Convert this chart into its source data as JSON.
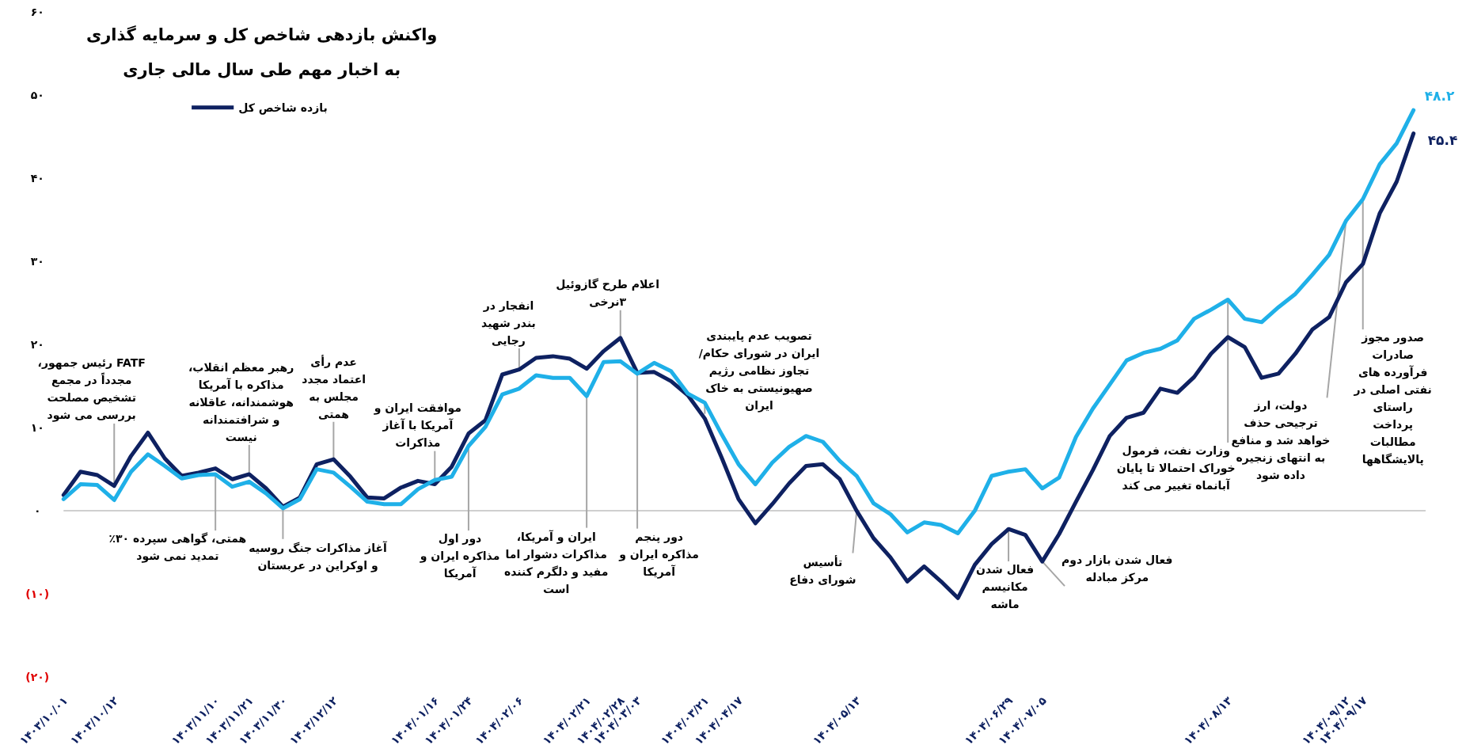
{
  "chart_data": {
    "type": "line",
    "title": "واکنش بازدهی شاخص کل و سرمایه گذاری\nبه اخبار مهم طی سال مالی جاری",
    "legend": "top left",
    "categories": [
      "۱۴۰۳/۱۰/۰۱",
      null,
      null,
      "۱۴۰۳/۱۰/۱۲",
      null,
      null,
      null,
      null,
      null,
      "۱۴۰۳/۱۱/۱۰",
      null,
      "۱۴۰۳/۱۱/۲۱",
      null,
      "۱۴۰۳/۱۱/۳۰",
      null,
      null,
      "۱۴۰۳/۱۲/۱۲",
      null,
      null,
      null,
      null,
      null,
      "۱۴۰۴/۰۱/۱۶",
      null,
      "۱۴۰۴/۰۱/۲۴",
      null,
      null,
      "۱۴۰۴/۰۲/۰۶",
      null,
      null,
      null,
      "۱۴۰۴/۰۲/۲۱",
      null,
      "۱۴۰۴/۰۲/۲۸",
      "۱۴۰۴/۰۳/۰۳",
      null,
      null,
      null,
      "۱۴۰۴/۰۳/۲۱",
      null,
      "۱۴۰۴/۰۴/۱۷",
      null,
      null,
      null,
      null,
      null,
      null,
      "۱۴۰۴/۰۵/۱۳",
      null,
      null,
      null,
      null,
      null,
      null,
      null,
      null,
      "۱۴۰۴/۰۶/۲۹",
      null,
      "۱۴۰۴/۰۷/۰۵",
      null,
      null,
      null,
      null,
      null,
      null,
      null,
      null,
      null,
      null,
      "۱۴۰۴/۰۸/۱۳",
      null,
      null,
      null,
      null,
      null,
      null,
      "۱۴۰۴/۰۹/۱۲",
      "۱۴۰۴/۰۹/۱۷",
      null,
      null,
      null
    ],
    "ylim": [
      -20,
      60
    ],
    "yticks": [
      {
        "value": 60,
        "label": "۶۰"
      },
      {
        "value": 50,
        "label": "۵۰"
      },
      {
        "value": 40,
        "label": "۴۰"
      },
      {
        "value": 30,
        "label": "۳۰"
      },
      {
        "value": 20,
        "label": "۲۰"
      },
      {
        "value": 10,
        "label": "۱۰"
      },
      {
        "value": 0,
        "label": "۰"
      },
      {
        "value": -10,
        "label": "(۱۰)"
      },
      {
        "value": -20,
        "label": "(۲۰)"
      }
    ],
    "ref_lines": [
      {
        "axis": "y",
        "value": 0,
        "color": "#bfbfbf"
      }
    ],
    "series": [
      {
        "name": "بازده شاخص کل",
        "color": "#0e2161",
        "values": [
          1.9,
          4.7,
          4.3,
          3.0,
          6.6,
          9.4,
          6.3,
          4.2,
          4.6,
          5.1,
          3.8,
          4.4,
          2.7,
          0.5,
          1.6,
          5.6,
          6.2,
          4.1,
          1.6,
          1.5,
          2.8,
          3.6,
          3.2,
          5.3,
          9.3,
          10.9,
          16.4,
          17.0,
          18.4,
          18.6,
          18.3,
          17.1,
          19.2,
          20.8,
          16.6,
          16.7,
          15.6,
          13.9,
          11.1,
          6.4,
          1.4,
          -1.5,
          0.8,
          3.3,
          5.4,
          5.6,
          3.8,
          0.0,
          -3.3,
          -5.6,
          -8.5,
          -6.7,
          -8.5,
          -10.5,
          -6.5,
          -4.0,
          -2.2,
          -2.9,
          -6.1,
          -2.8,
          1.1,
          4.9,
          9.0,
          11.2,
          11.8,
          14.7,
          14.2,
          16.1,
          18.9,
          20.9,
          19.7,
          16.0,
          16.5,
          18.9,
          21.8,
          23.3,
          27.5,
          29.7,
          35.8,
          39.6,
          45.4
        ],
        "value_labels": [
          null,
          null,
          null,
          null,
          null,
          null,
          null,
          null,
          null,
          null,
          null,
          null,
          null,
          null,
          null,
          null,
          null,
          null,
          null,
          null,
          null,
          null,
          null,
          null,
          null,
          null,
          null,
          null,
          null,
          null,
          null,
          null,
          null,
          null,
          null,
          null,
          null,
          null,
          null,
          null,
          null,
          null,
          null,
          null,
          null,
          null,
          null,
          null,
          null,
          null,
          null,
          null,
          null,
          null,
          null,
          null,
          null,
          null,
          null,
          null,
          null,
          null,
          null,
          null,
          null,
          null,
          null,
          null,
          null,
          null,
          null,
          null,
          null,
          null,
          null,
          null,
          null,
          null,
          null,
          null,
          "۴۵.۴"
        ]
      },
      {
        "color": "#1fb0e8",
        "values": [
          1.4,
          3.2,
          3.1,
          1.3,
          4.7,
          6.8,
          5.4,
          3.9,
          4.3,
          4.4,
          2.9,
          3.5,
          2.1,
          0.3,
          1.4,
          5.0,
          4.6,
          2.9,
          1.1,
          0.8,
          0.8,
          2.6,
          3.7,
          4.1,
          7.8,
          10.1,
          14.0,
          14.7,
          16.3,
          16.0,
          16.0,
          13.8,
          17.9,
          18.0,
          16.5,
          17.8,
          16.8,
          14.1,
          13.0,
          9.2,
          5.6,
          3.2,
          5.8,
          7.7,
          9.0,
          8.3,
          6.0,
          4.2,
          0.9,
          -0.4,
          -2.6,
          -1.4,
          -1.7,
          -2.7,
          0.0,
          4.2,
          4.7,
          5.0,
          2.7,
          4.0,
          8.9,
          12.3,
          15.2,
          18.1,
          19.0,
          19.5,
          20.5,
          23.1,
          24.2,
          25.4,
          23.1,
          22.7,
          24.5,
          26.1,
          28.4,
          30.8,
          34.9,
          37.5,
          41.7,
          44.2,
          48.2
        ],
        "value_labels": [
          null,
          null,
          null,
          null,
          null,
          null,
          null,
          null,
          null,
          null,
          null,
          null,
          null,
          null,
          null,
          null,
          null,
          null,
          null,
          null,
          null,
          null,
          null,
          null,
          null,
          null,
          null,
          null,
          null,
          null,
          null,
          null,
          null,
          null,
          null,
          null,
          null,
          null,
          null,
          null,
          null,
          null,
          null,
          null,
          null,
          null,
          null,
          null,
          null,
          null,
          null,
          null,
          null,
          null,
          null,
          null,
          null,
          null,
          null,
          null,
          null,
          null,
          null,
          null,
          null,
          null,
          null,
          null,
          null,
          null,
          null,
          null,
          null,
          null,
          null,
          null,
          null,
          null,
          null,
          null,
          "۴۸.۲"
        ]
      }
    ],
    "annotations": [
      {
        "text": "FATF رئیس جمهور،\nمجدداً در مجمع\nتشخیص مصلحت\nبررسی می شود",
        "x": "۱۴۰۳/۱۰/۱۲",
        "y": 3.0
      },
      {
        "text": "همتی، گواهی سپرده ۳۰٪\nتمدید نمی شود",
        "x": "۱۴۰۳/۱۱/۱۰",
        "y": 4.4
      },
      {
        "text": "رهبر معظم انقلاب،\nمذاکره با آمریکا\nهوشمندانه، عاقلانه\nو شرافتمندانه\nنیست",
        "x": "۱۴۰۳/۱۱/۲۱",
        "y": 4.4
      },
      {
        "text": "آغاز مذاکرات جنگ روسیه\nو اوکراین در عربستان",
        "x": "۱۴۰۳/۱۱/۳۰",
        "y": 0.3
      },
      {
        "text": "عدم رأی\nاعتماد مجدد\nمجلس به\nهمتی",
        "x": "۱۴۰۳/۱۲/۱۲",
        "y": 6.2
      },
      {
        "text": "موافقت ایران و\nآمریکا با آغاز\nمذاکرات",
        "x": "۱۴۰۴/۰۱/۱۶",
        "y": 3.7
      },
      {
        "text": "دور اول\nمذاکره ایران و\nآمریکا",
        "x": "۱۴۰۴/۰۱/۲۴",
        "y": 7.8
      },
      {
        "text": "انفجار در\nبندر شهید\nرجایی",
        "x": "۱۴۰۴/۰۲/۰۶",
        "y": 17.0
      },
      {
        "text": "ایران و آمریکا،\nمذاکرات دشوار اما\nمفید و دلگرم کننده\nاست",
        "x": "۱۴۰۴/۰۲/۲۱",
        "y": 13.8
      },
      {
        "text": "اعلام طرح گازوئیل\n۳نرخی",
        "x": "۱۴۰۴/۰۲/۲۸",
        "y": 20.8
      },
      {
        "text": "دور پنجم\nمذاکره ایران و\nآمریکا",
        "x": "۱۴۰۴/۰۳/۰۳",
        "y": 16.5
      },
      {
        "text": "تصویب عدم پایبندی\nایران در شورای حکام/\nتجاوز نظامی رژیم\nصهیونیستی به خاک\nایران",
        "x": "۱۴۰۴/۰۳/۲۱",
        "y": 13.0
      },
      {
        "text": "تأسیس\nشورای دفاع",
        "x": "۱۴۰۴/۰۵/۱۳",
        "y": 0.0
      },
      {
        "text": "فعال شدن\nمکانیسم\nماشه",
        "x": "۱۴۰۴/۰۶/۲۹",
        "y": -2.2
      },
      {
        "text": "فعال شدن بازار دوم\nمرکز مبادله",
        "x": "۱۴۰۴/۰۷/۰۵",
        "y": -6.1
      },
      {
        "text": "وزارت نفت، فرمول\nخوراک احتمالا تا پایان\nآبانماه تغییر می کند",
        "x": "۱۴۰۴/۰۸/۱۳",
        "y": 25.4
      },
      {
        "text": "دولت، ارز\nترجیحی حذف\nخواهد شد و منافع\nبه انتهای زنجیره\nداده شود",
        "x": "۱۴۰۴/۰۹/۱۲",
        "y": 34.9
      },
      {
        "text": "صدور مجوز\nصادرات\nفرآورده های\nنفتی اصلی در\nراستای\nپرداخت\nمطالبات\nپالایشگاهها",
        "x": "۱۴۰۴/۰۹/۱۷",
        "y": 37.5
      }
    ]
  }
}
